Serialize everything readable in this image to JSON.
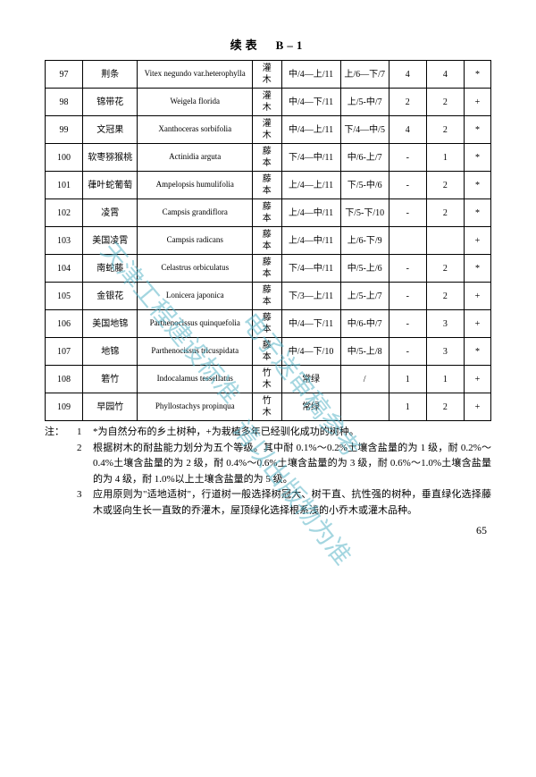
{
  "title": "续表　B–1",
  "rows": [
    {
      "n": "97",
      "cn": "荆条",
      "latin": "Vitex negundo var.heterophylla",
      "type": "灌木",
      "c5": "中/4—上/11",
      "c6": "上/6—下/7",
      "c7": "4",
      "c8": "4",
      "c9": "*"
    },
    {
      "n": "98",
      "cn": "锦带花",
      "latin": "Weigela florida",
      "type": "灌木",
      "c5": "中/4—下/11",
      "c6": "上/5-中/7",
      "c7": "2",
      "c8": "2",
      "c9": "+"
    },
    {
      "n": "99",
      "cn": "文冠果",
      "latin": "Xanthoceras sorbifolia",
      "type": "灌木",
      "c5": "中/4—上/11",
      "c6": "下/4—中/5",
      "c7": "4",
      "c8": "2",
      "c9": "*"
    },
    {
      "n": "100",
      "cn": "软枣猕猴桃",
      "latin": "Actinidia arguta",
      "type": "藤本",
      "c5": "下/4—中/11",
      "c6": "中/6-上/7",
      "c7": "-",
      "c8": "1",
      "c9": "*"
    },
    {
      "n": "101",
      "cn": "葎叶蛇葡萄",
      "latin": "Ampelopsis humulifolia",
      "type": "藤本",
      "c5": "上/4—上/11",
      "c6": "下/5-中/6",
      "c7": "-",
      "c8": "2",
      "c9": "*"
    },
    {
      "n": "102",
      "cn": "凌霄",
      "latin": "Campsis grandiflora",
      "type": "藤本",
      "c5": "上/4—中/11",
      "c6": "下/5-下/10",
      "c7": "-",
      "c8": "2",
      "c9": "*"
    },
    {
      "n": "103",
      "cn": "美国凌霄",
      "latin": "Campsis radicans",
      "type": "藤本",
      "c5": "上/4—中/11",
      "c6": "上/6-下/9",
      "c7": "",
      "c8": "",
      "c9": "+"
    },
    {
      "n": "104",
      "cn": "南蛇藤",
      "latin": "Celastrus orbiculatus",
      "type": "藤本",
      "c5": "下/4—中/11",
      "c6": "中/5-上/6",
      "c7": "-",
      "c8": "2",
      "c9": "*"
    },
    {
      "n": "105",
      "cn": "金银花",
      "latin": "Lonicera japonica",
      "type": "藤本",
      "c5": "下/3—上/11",
      "c6": "上/5-上/7",
      "c7": "-",
      "c8": "2",
      "c9": "+"
    },
    {
      "n": "106",
      "cn": "美国地锦",
      "latin": "Parthenocissus quinquefolia",
      "type": "藤本",
      "c5": "中/4—下/11",
      "c6": "中/6-中/7",
      "c7": "-",
      "c8": "3",
      "c9": "+"
    },
    {
      "n": "107",
      "cn": "地锦",
      "latin": "Parthenocissus tricuspidata",
      "type": "藤本",
      "c5": "中/4—下/10",
      "c6": "中/5-上/8",
      "c7": "-",
      "c8": "3",
      "c9": "*"
    },
    {
      "n": "108",
      "cn": "箬竹",
      "latin": "Indocalamus tessellatus",
      "type": "竹木",
      "c5": "常绿",
      "c6": "/",
      "c7": "1",
      "c8": "1",
      "c9": "+"
    },
    {
      "n": "109",
      "cn": "早园竹",
      "latin": "Phyllostachys propinqua",
      "type": "竹木",
      "c5": "常绿",
      "c6": "",
      "c7": "1",
      "c8": "2",
      "c9": "+"
    }
  ],
  "notes": {
    "label": "注：",
    "items": [
      {
        "n": "1",
        "t": "*为自然分布的乡土树种，+为栽植多年已经驯化成功的树种。"
      },
      {
        "n": "2",
        "t": "根据树木的耐盐能力划分为五个等级。其中耐 0.1%～0.2%土壤含盐量的为 1 级，耐 0.2%～0.4%土壤含盐量的为 2 级，耐 0.4%～0.6%土壤含盐量的为 3 级，耐 0.6%～1.0%土壤含盐量的为 4 级，耐 1.0%以上土壤含盐量的为 5 级。"
      },
      {
        "n": "3",
        "t": "应用原则为\"适地适树\"，行道树一般选择树冠大、树干直、抗性强的树种，垂直绿化选择藤木或竖向生长一直致的乔灌木，屋顶绿化选择根系浅的小乔木或灌木品种。"
      }
    ]
  },
  "page_number": "65",
  "watermarks": [
    "天津工程建设标准",
    "电子送审稿参考",
    "请以出版物为准"
  ]
}
